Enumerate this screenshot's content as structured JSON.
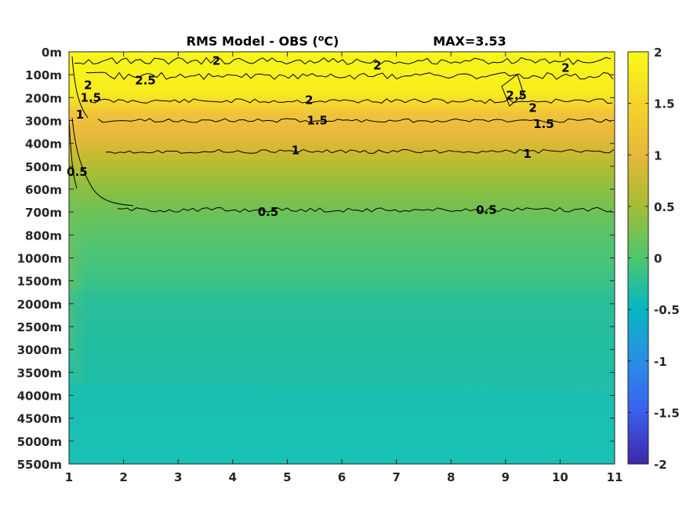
{
  "chart_data": {
    "type": "heatmap",
    "title": "RMS Model - OBS (",
    "title_unit": "o",
    "title_unit_tail": "C)",
    "max_label": "MAX=3.53",
    "x_ticks": [
      "1",
      "2",
      "3",
      "4",
      "5",
      "6",
      "7",
      "8",
      "9",
      "10",
      "11"
    ],
    "y_ticks": [
      "0m",
      "100m",
      "200m",
      "300m",
      "400m",
      "500m",
      "600m",
      "700m",
      "800m",
      "1000m",
      "1500m",
      "2000m",
      "2500m",
      "3000m",
      "3500m",
      "4000m",
      "4500m",
      "5000m",
      "5500m"
    ],
    "colorbar": {
      "ticks": [
        "2",
        "1.5",
        "1",
        "0.5",
        "0",
        "-0.5",
        "-1",
        "-1.5",
        "-2"
      ],
      "clim": [
        -2,
        2
      ]
    },
    "contour_labels": [
      {
        "text": "2",
        "x": 3.7,
        "y_level": 0.4
      },
      {
        "text": "2.5",
        "x": 2.4,
        "y_level": 1.25
      },
      {
        "text": "2",
        "x": 6.65,
        "y_level": 0.6
      },
      {
        "text": "2",
        "x": 10.1,
        "y_level": 0.7
      },
      {
        "text": "2",
        "x": 1.35,
        "y_level": 1.45
      },
      {
        "text": "1.5",
        "x": 1.4,
        "y_level": 2.0
      },
      {
        "text": "1",
        "x": 1.2,
        "y_level": 2.75
      },
      {
        "text": "2",
        "x": 5.4,
        "y_level": 2.1
      },
      {
        "text": "2.5",
        "x": 9.2,
        "y_level": 1.9
      },
      {
        "text": "2",
        "x": 9.5,
        "y_level": 2.45
      },
      {
        "text": "1.5",
        "x": 5.55,
        "y_level": 3.0
      },
      {
        "text": "1.5",
        "x": 9.7,
        "y_level": 3.15
      },
      {
        "text": "1",
        "x": 5.15,
        "y_level": 4.3
      },
      {
        "text": "1",
        "x": 9.4,
        "y_level": 4.45
      },
      {
        "text": "0.5",
        "x": 1.15,
        "y_level": 5.25
      },
      {
        "text": "0.5",
        "x": 4.65,
        "y_level": 7.0
      },
      {
        "text": "0.5",
        "x": 8.65,
        "y_level": 6.9
      }
    ]
  }
}
